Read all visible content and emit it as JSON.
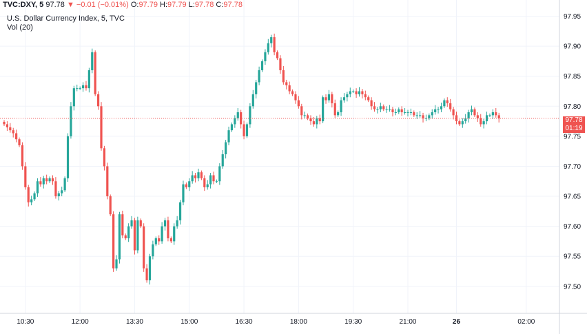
{
  "header": {
    "symbol": "TVC:DXY, 5",
    "last": "97.78",
    "arrow": "▼",
    "change": "−0.01 (−0.01%)",
    "o_label": "O:",
    "o_value": "97.79",
    "h_label": "H:",
    "h_value": "97.79",
    "l_label": "L:",
    "l_value": "97.78",
    "c_label": "C:",
    "c_value": "97.78",
    "title": "U.S. Dollar Currency Index, 5, TVC",
    "vol": "Vol (20)"
  },
  "price_badge": {
    "price": "97.78",
    "countdown": "01:19"
  },
  "colors": {
    "up": "#26a69a",
    "down": "#ef5350",
    "grid": "#f0f3fa",
    "price_line": "#ef5350"
  },
  "chart_data": {
    "type": "candlestick",
    "title": "U.S. Dollar Currency Index, 5, TVC",
    "y_ticks": [
      "97.95",
      "97.90",
      "97.85",
      "97.80",
      "97.75",
      "97.70",
      "97.65",
      "97.60",
      "97.55",
      "97.50"
    ],
    "y_tick_values": [
      97.95,
      97.9,
      97.85,
      97.8,
      97.75,
      97.7,
      97.65,
      97.6,
      97.55,
      97.5
    ],
    "ylim": [
      97.455,
      97.977
    ],
    "x_ticks": [
      {
        "label": "10:30",
        "index": 7,
        "bold": false
      },
      {
        "label": "12:00",
        "index": 25,
        "bold": false
      },
      {
        "label": "13:30",
        "index": 43,
        "bold": false
      },
      {
        "label": "15:00",
        "index": 61,
        "bold": false
      },
      {
        "label": "16:30",
        "index": 79,
        "bold": false
      },
      {
        "label": "18:00",
        "index": 97,
        "bold": false
      },
      {
        "label": "19:30",
        "index": 115,
        "bold": false
      },
      {
        "label": "21:00",
        "index": 133,
        "bold": false
      },
      {
        "label": "26",
        "index": 149,
        "bold": true
      },
      {
        "label": "02:00",
        "index": 172,
        "bold": false
      }
    ],
    "last_price": 97.78,
    "closes": [
      97.77,
      97.765,
      97.76,
      97.755,
      97.745,
      97.735,
      97.7,
      97.665,
      97.64,
      97.645,
      97.655,
      97.675,
      97.67,
      97.68,
      97.675,
      97.68,
      97.675,
      97.65,
      97.655,
      97.66,
      97.68,
      97.75,
      97.8,
      97.83,
      97.83,
      97.83,
      97.835,
      97.83,
      97.86,
      97.89,
      97.82,
      97.8,
      97.73,
      97.7,
      97.65,
      97.62,
      97.53,
      97.545,
      97.62,
      97.585,
      97.58,
      97.6,
      97.61,
      97.56,
      97.61,
      97.6,
      97.53,
      97.51,
      97.55,
      97.57,
      97.58,
      97.575,
      97.6,
      97.61,
      97.58,
      97.575,
      97.6,
      97.61,
      97.64,
      97.67,
      97.665,
      97.675,
      97.685,
      97.68,
      97.69,
      97.68,
      97.665,
      97.67,
      97.685,
      97.675,
      97.675,
      97.7,
      97.72,
      97.74,
      97.76,
      97.77,
      97.78,
      97.79,
      97.77,
      97.75,
      97.77,
      97.8,
      97.82,
      97.84,
      97.86,
      97.875,
      97.89,
      97.905,
      97.915,
      97.89,
      97.88,
      97.86,
      97.84,
      97.835,
      97.825,
      97.82,
      97.81,
      97.8,
      97.785,
      97.785,
      97.78,
      97.775,
      97.77,
      97.78,
      97.775,
      97.815,
      97.81,
      97.82,
      97.805,
      97.785,
      97.79,
      97.81,
      97.815,
      97.82,
      97.825,
      97.825,
      97.82,
      97.825,
      97.82,
      97.815,
      97.81,
      97.8,
      97.795,
      97.795,
      97.8,
      97.795,
      97.795,
      97.795,
      97.79,
      97.79,
      97.795,
      97.79,
      97.79,
      97.79,
      97.79,
      97.785,
      97.785,
      97.785,
      97.78,
      97.78,
      97.785,
      97.79,
      97.795,
      97.795,
      97.8,
      97.81,
      97.805,
      97.795,
      97.785,
      97.775,
      97.77,
      97.775,
      97.78,
      97.79,
      97.795,
      97.785,
      97.78,
      97.77,
      97.775,
      97.785,
      97.785,
      97.79,
      97.785,
      97.78
    ]
  }
}
